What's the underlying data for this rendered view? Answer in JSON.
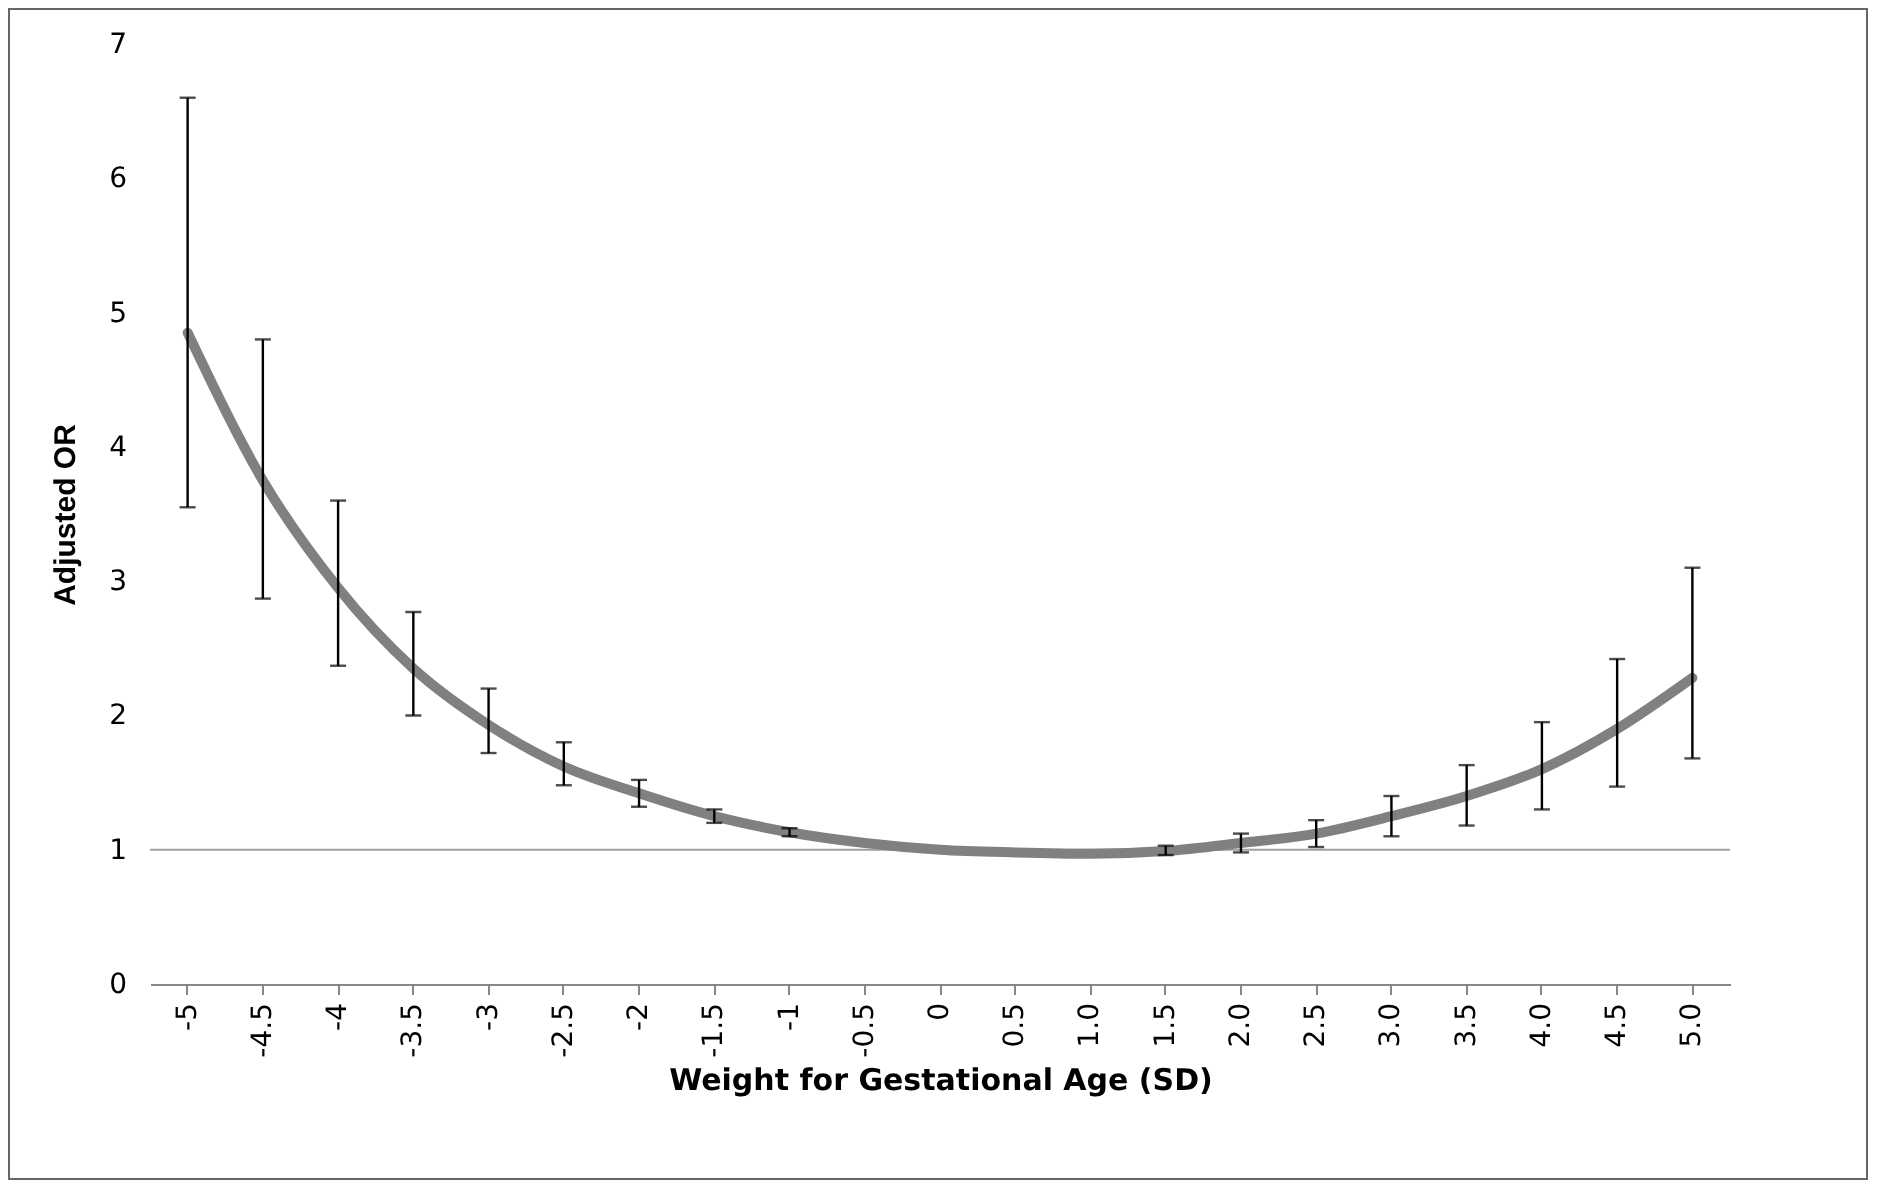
{
  "chart_data": {
    "type": "line",
    "xlabel": "Weight for Gestational Age (SD)",
    "ylabel": "Adjusted OR",
    "categories": [
      "-5",
      "-4.5",
      "-4",
      "-3.5",
      "-3",
      "-2.5",
      "-2",
      "-1.5",
      "-1",
      "-0.5",
      "0",
      "0.5",
      "1.0",
      "1.5",
      "2.0",
      "2.5",
      "3.0",
      "3.5",
      "4.0",
      "4.5",
      "5.0"
    ],
    "series": [
      {
        "color": "#808080",
        "values": [
          4.85,
          3.75,
          2.95,
          2.35,
          1.93,
          1.62,
          1.42,
          1.25,
          1.13,
          1.05,
          1.0,
          0.98,
          0.97,
          0.99,
          1.05,
          1.12,
          1.25,
          1.4,
          1.6,
          1.9,
          2.28
        ],
        "errors": [
          [
            3.55,
            6.6
          ],
          [
            2.87,
            4.8
          ],
          [
            2.37,
            3.6
          ],
          [
            2.0,
            2.77
          ],
          [
            1.72,
            2.2
          ],
          [
            1.48,
            1.8
          ],
          [
            1.32,
            1.52
          ],
          [
            1.2,
            1.3
          ],
          [
            1.1,
            1.16
          ],
          null,
          null,
          null,
          null,
          [
            0.96,
            1.03
          ],
          [
            0.98,
            1.12
          ],
          [
            1.02,
            1.22
          ],
          [
            1.1,
            1.4
          ],
          [
            1.18,
            1.63
          ],
          [
            1.3,
            1.95
          ],
          [
            1.47,
            2.42
          ],
          [
            1.68,
            3.1
          ]
        ]
      }
    ],
    "ylim": [
      0,
      7
    ],
    "yticks": [
      0,
      1,
      2,
      3,
      4,
      5,
      6,
      7
    ],
    "grid": false,
    "marker": "none",
    "line_style": "solid",
    "ref_lines": [
      {
        "axis": "y",
        "value": 1,
        "color": "#a0a0a0"
      }
    ]
  }
}
